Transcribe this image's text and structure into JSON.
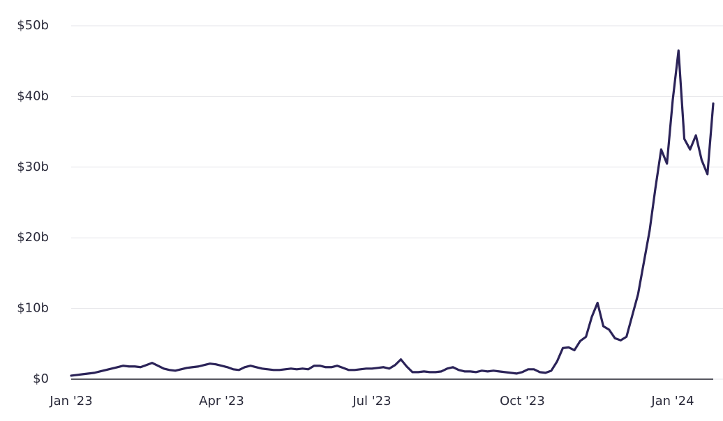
{
  "chart_data": {
    "type": "line",
    "categories": [
      "Jan '23",
      null,
      null,
      null,
      null,
      null,
      null,
      null,
      null,
      null,
      null,
      null,
      null,
      null,
      null,
      null,
      null,
      null,
      null,
      null,
      null,
      null,
      null,
      null,
      null,
      null,
      "Apr '23",
      null,
      null,
      null,
      null,
      null,
      null,
      null,
      null,
      null,
      null,
      null,
      null,
      null,
      null,
      null,
      null,
      null,
      null,
      null,
      null,
      null,
      null,
      null,
      null,
      null,
      "Jul '23",
      null,
      null,
      null,
      null,
      null,
      null,
      null,
      null,
      null,
      null,
      null,
      null,
      null,
      null,
      null,
      null,
      null,
      null,
      null,
      null,
      null,
      null,
      null,
      null,
      null,
      "Oct '23",
      null,
      null,
      null,
      null,
      null,
      null,
      null,
      null,
      null,
      null,
      null,
      null,
      null,
      null,
      null,
      null,
      null,
      null,
      null,
      null,
      null,
      null,
      null,
      null,
      null,
      "Jan '24",
      null,
      null,
      null,
      null,
      null,
      null,
      null
    ],
    "series": [
      {
        "color": "#2b2358",
        "values": [
          0.5,
          0.6,
          0.7,
          0.8,
          0.9,
          1.1,
          1.3,
          1.5,
          1.7,
          1.9,
          1.8,
          1.8,
          1.7,
          2.0,
          2.3,
          1.9,
          1.5,
          1.3,
          1.2,
          1.4,
          1.6,
          1.7,
          1.8,
          2.0,
          2.2,
          2.1,
          1.9,
          1.7,
          1.4,
          1.3,
          1.7,
          1.9,
          1.7,
          1.5,
          1.4,
          1.3,
          1.3,
          1.4,
          1.5,
          1.4,
          1.5,
          1.4,
          1.9,
          1.9,
          1.7,
          1.7,
          1.9,
          1.6,
          1.3,
          1.3,
          1.4,
          1.5,
          1.5,
          1.6,
          1.7,
          1.5,
          2.0,
          2.8,
          1.8,
          1.0,
          1.0,
          1.1,
          1.0,
          1.0,
          1.1,
          1.5,
          1.7,
          1.3,
          1.1,
          1.1,
          1.0,
          1.2,
          1.1,
          1.2,
          1.1,
          1.0,
          0.9,
          0.8,
          1.0,
          1.4,
          1.4,
          1.0,
          0.9,
          1.2,
          2.5,
          4.4,
          4.5,
          4.1,
          5.4,
          6.0,
          8.8,
          10.8,
          7.5,
          7.0,
          5.8,
          5.5,
          6.0,
          9.0,
          12.0,
          16.5,
          21.0,
          27.0,
          32.5,
          30.5,
          39.5,
          46.5,
          34.0,
          32.5,
          34.5,
          31.0,
          29.0,
          39.0
        ]
      }
    ],
    "ylim": [
      0,
      50
    ],
    "yticks": [
      {
        "value": 0,
        "label": "$0"
      },
      {
        "value": 10,
        "label": "$10b"
      },
      {
        "value": 20,
        "label": "$20b"
      },
      {
        "value": 30,
        "label": "$30b"
      },
      {
        "value": 40,
        "label": "$40b"
      },
      {
        "value": 50,
        "label": "$50b"
      }
    ],
    "grid": true
  }
}
